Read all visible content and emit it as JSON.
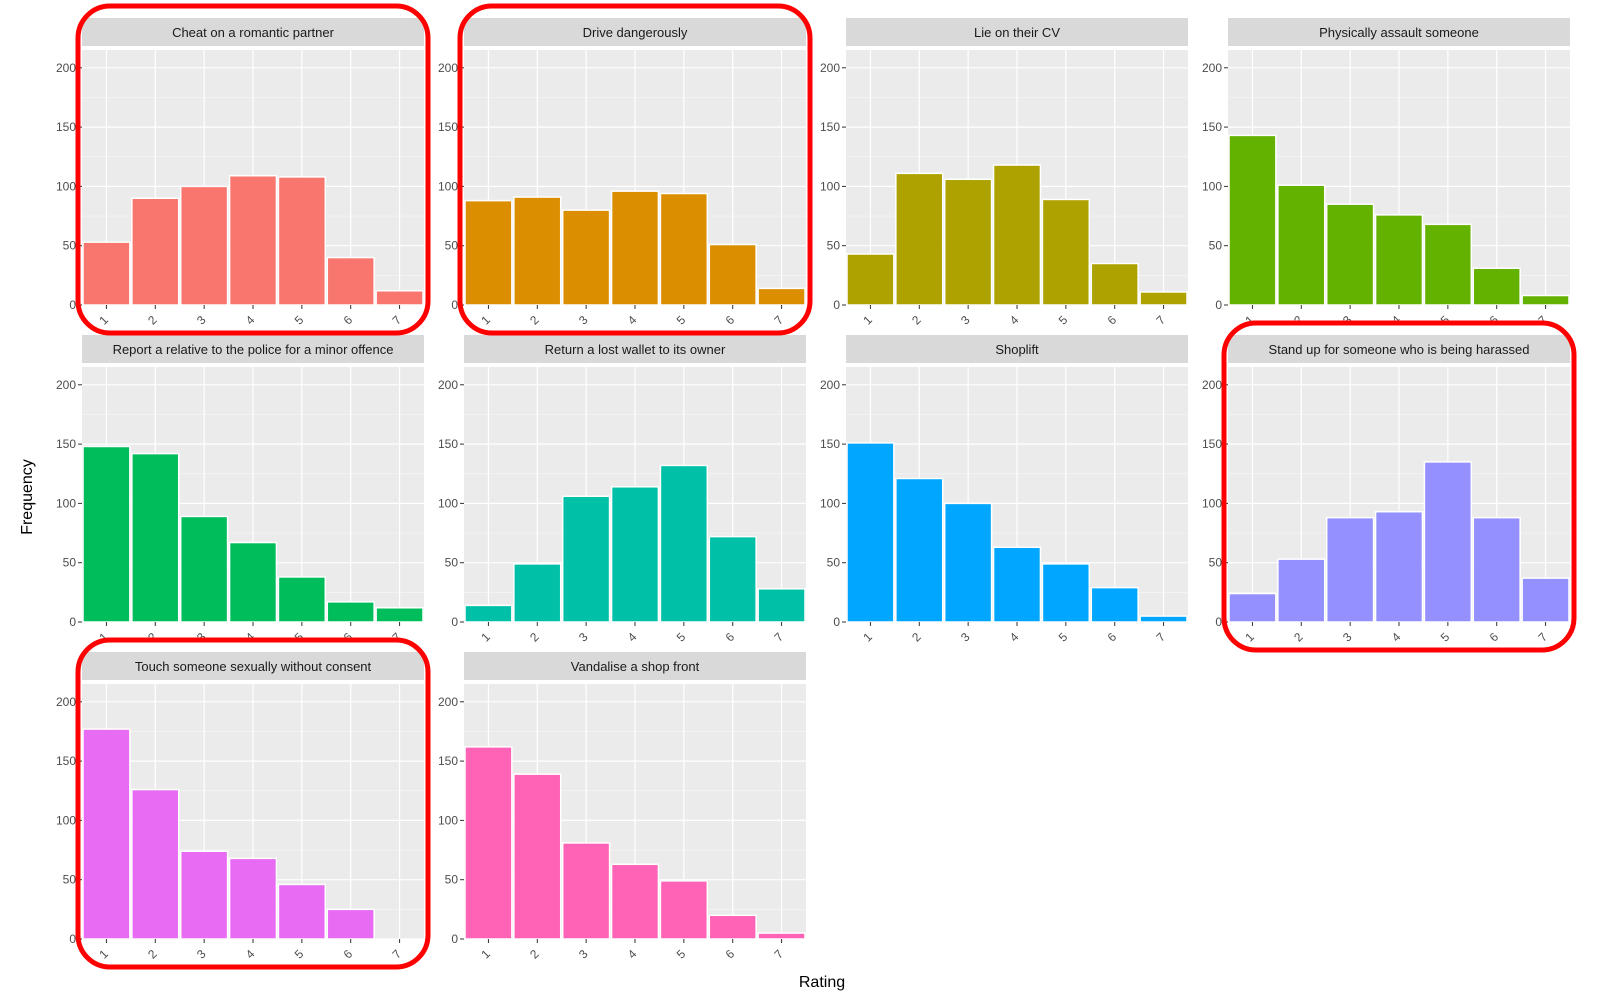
{
  "chart_data": {
    "type": "bar",
    "xlabel": "Rating",
    "ylabel": "Frequency",
    "ylim": [
      0,
      215
    ],
    "yticks": [
      0,
      50,
      100,
      150,
      200
    ],
    "categories": [
      "1",
      "2",
      "3",
      "4",
      "5",
      "6",
      "7"
    ],
    "grid": true,
    "legend": "none",
    "highlight_color": "#ff0000",
    "panels": [
      {
        "title": "Cheat on a romantic partner",
        "color": "#F8766D",
        "values": [
          53,
          90,
          100,
          109,
          108,
          40,
          12
        ],
        "highlighted": true
      },
      {
        "title": "Drive dangerously",
        "color": "#DB8E00",
        "values": [
          88,
          91,
          80,
          96,
          94,
          51,
          14
        ],
        "highlighted": true
      },
      {
        "title": "Lie on their CV",
        "color": "#AEA200",
        "values": [
          43,
          111,
          106,
          118,
          89,
          35,
          11
        ],
        "highlighted": false
      },
      {
        "title": "Physically assault someone",
        "color": "#64B200",
        "values": [
          143,
          101,
          85,
          76,
          68,
          31,
          8
        ],
        "highlighted": false
      },
      {
        "title": "Report a relative to the police for a minor offence",
        "color": "#00BD5C",
        "values": [
          148,
          142,
          89,
          67,
          38,
          17,
          12
        ],
        "highlighted": false
      },
      {
        "title": "Return a lost wallet to its owner",
        "color": "#00C1A7",
        "values": [
          14,
          49,
          106,
          114,
          132,
          72,
          28
        ],
        "highlighted": false
      },
      {
        "title": "Shoplift",
        "color": "#00A6FF",
        "values": [
          151,
          121,
          100,
          63,
          49,
          29,
          5
        ],
        "highlighted": false
      },
      {
        "title": "Stand up for someone who is being harassed",
        "color": "#9590FF",
        "values": [
          24,
          53,
          88,
          93,
          135,
          88,
          37
        ],
        "highlighted": true
      },
      {
        "title": "Touch someone sexually without consent",
        "color": "#E76BF3",
        "values": [
          177,
          126,
          74,
          68,
          46,
          25,
          0
        ],
        "highlighted": true
      },
      {
        "title": "Vandalise a shop front",
        "color": "#FF63B6",
        "values": [
          162,
          139,
          81,
          63,
          49,
          20,
          5
        ],
        "highlighted": false
      }
    ]
  }
}
